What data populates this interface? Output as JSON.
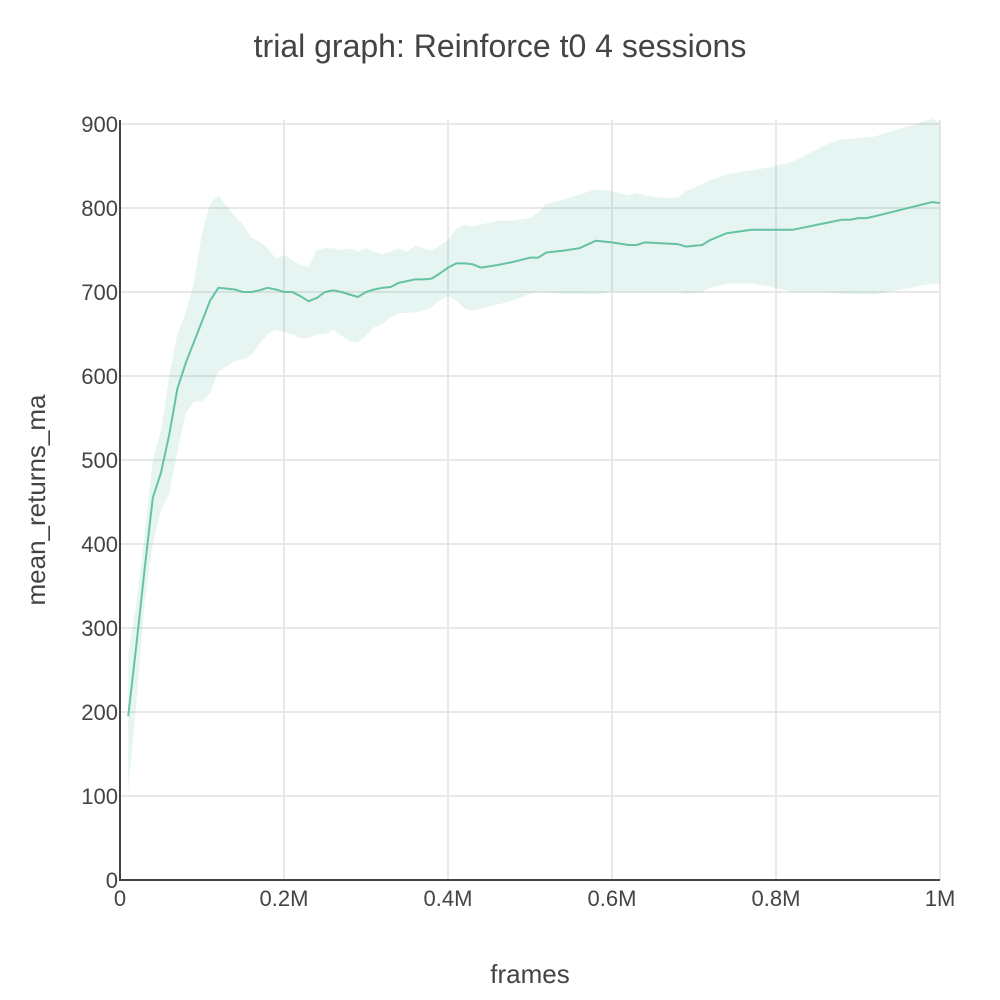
{
  "chart_data": {
    "type": "line",
    "title": "trial graph: Reinforce t0 4 sessions",
    "xlabel": "frames",
    "ylabel": "mean_returns_ma",
    "xlim": [
      0,
      1000000
    ],
    "ylim": [
      0,
      900
    ],
    "grid": true,
    "x_ticks": [
      {
        "value": 0,
        "label": "0"
      },
      {
        "value": 200000,
        "label": "0.2M"
      },
      {
        "value": 400000,
        "label": "0.4M"
      },
      {
        "value": 600000,
        "label": "0.6M"
      },
      {
        "value": 800000,
        "label": "0.8M"
      },
      {
        "value": 1000000,
        "label": "1M"
      }
    ],
    "y_ticks": [
      {
        "value": 0,
        "label": "0"
      },
      {
        "value": 100,
        "label": "100"
      },
      {
        "value": 200,
        "label": "200"
      },
      {
        "value": 300,
        "label": "300"
      },
      {
        "value": 400,
        "label": "400"
      },
      {
        "value": 500,
        "label": "500"
      },
      {
        "value": 600,
        "label": "600"
      },
      {
        "value": 700,
        "label": "700"
      },
      {
        "value": 800,
        "label": "800"
      },
      {
        "value": 900,
        "label": "900"
      }
    ],
    "line_color": "#66c2a5",
    "band_color": "#66c2a5",
    "series": [
      {
        "x": [
          10000,
          20000,
          30000,
          40000,
          50000,
          60000,
          70000,
          80000,
          90000,
          100000,
          110000,
          120000,
          140000,
          150000,
          160000,
          170000,
          180000,
          190000,
          200000,
          210000,
          220000,
          230000,
          240000,
          250000,
          260000,
          270000,
          280000,
          290000,
          300000,
          310000,
          320000,
          330000,
          340000,
          350000,
          360000,
          370000,
          380000,
          390000,
          400000,
          410000,
          420000,
          430000,
          440000,
          460000,
          480000,
          500000,
          510000,
          520000,
          540000,
          560000,
          580000,
          600000,
          620000,
          630000,
          640000,
          660000,
          680000,
          690000,
          710000,
          720000,
          740000,
          770000,
          790000,
          820000,
          860000,
          880000,
          890000,
          900000,
          910000,
          920000,
          990000,
          1000000
        ],
        "y": [
          195,
          280,
          370,
          455,
          485,
          530,
          585,
          615,
          640,
          665,
          690,
          705,
          703,
          700,
          700,
          702,
          705,
          703,
          700,
          700,
          695,
          689,
          693,
          700,
          702,
          700,
          697,
          694,
          700,
          703,
          705,
          706,
          711,
          713,
          715,
          715,
          716,
          722,
          729,
          734,
          734,
          733,
          729,
          732,
          736,
          741,
          741,
          747,
          749,
          752,
          761,
          759,
          756,
          756,
          759,
          758,
          757,
          754,
          756,
          762,
          770,
          774,
          774,
          774,
          782,
          786,
          786,
          788,
          788,
          790,
          807,
          806
        ],
        "upper": [
          270,
          330,
          410,
          500,
          535,
          600,
          650,
          675,
          710,
          770,
          805,
          815,
          790,
          780,
          765,
          760,
          752,
          740,
          744,
          738,
          732,
          730,
          750,
          752,
          752,
          750,
          752,
          748,
          752,
          748,
          745,
          748,
          752,
          748,
          755,
          752,
          749,
          755,
          762,
          775,
          780,
          778,
          780,
          785,
          785,
          788,
          795,
          805,
          810,
          816,
          822,
          820,
          815,
          818,
          815,
          812,
          812,
          820,
          828,
          833,
          840,
          845,
          848,
          855,
          875,
          882,
          882,
          883,
          884,
          885,
          906,
          902
        ],
        "lower": [
          105,
          210,
          330,
          400,
          440,
          460,
          510,
          555,
          570,
          570,
          580,
          605,
          618,
          620,
          625,
          638,
          650,
          655,
          652,
          650,
          645,
          645,
          650,
          650,
          655,
          648,
          642,
          640,
          648,
          658,
          662,
          670,
          675,
          675,
          676,
          678,
          682,
          690,
          695,
          690,
          680,
          678,
          680,
          685,
          690,
          698,
          700,
          700,
          698,
          698,
          697,
          700,
          700,
          700,
          700,
          700,
          700,
          698,
          700,
          705,
          710,
          710,
          707,
          700,
          700,
          698,
          698,
          697,
          697,
          697,
          710,
          710
        ]
      }
    ]
  }
}
